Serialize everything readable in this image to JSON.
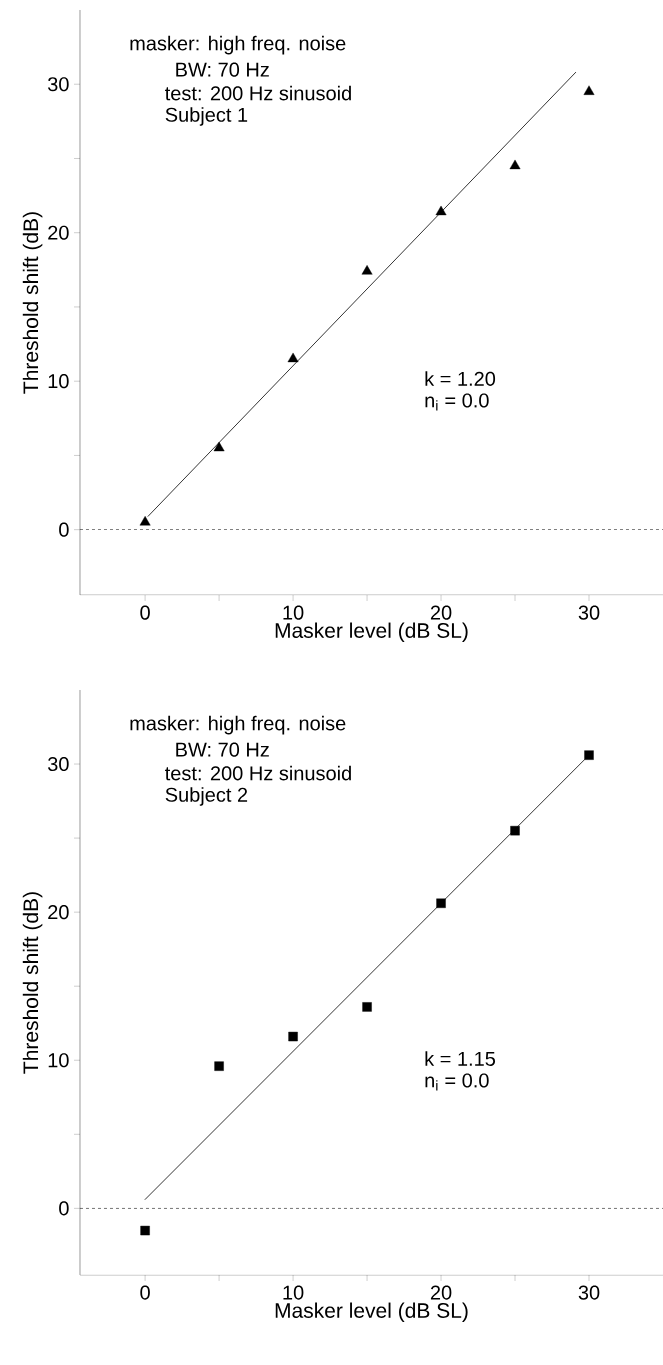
{
  "chart_data": [
    {
      "type": "scatter",
      "xlabel": "Masker level (dB SL)",
      "ylabel": "Threshold shift (dB)",
      "annotations": [
        "masker: high freq. noise",
        "BW: 70 Hz",
        "test: 200 Hz sinusoid",
        "Subject 1",
        "k = 1.20",
        "n$_{i}$ = 0.0"
      ],
      "xlim": [
        -4.4,
        35
      ],
      "ylim": [
        -4.4,
        35
      ],
      "xticks": [
        0,
        {
          "value": 5,
          "label": null
        },
        10,
        {
          "value": 15,
          "label": null
        },
        20,
        {
          "value": 25,
          "label": null
        },
        30
      ],
      "yticks": [
        0,
        {
          "value": 5,
          "label": null
        },
        10,
        {
          "value": 15,
          "label": null
        },
        20,
        {
          "value": 25,
          "label": null
        },
        30
      ],
      "series": [
        {
          "marker": "triangle",
          "color": "#000000",
          "x": [
            0,
            5,
            10,
            15,
            20,
            25,
            30
          ],
          "values": [
            0.5,
            5.5,
            11.5,
            17.4,
            21.4,
            24.5,
            29.5
          ]
        },
        {
          "type": "line",
          "marker": "none",
          "line_style": "solid",
          "color": "#000000",
          "x": [
            0.2,
            29.1
          ],
          "values": [
            0.9,
            30.8
          ]
        }
      ],
      "ref_lines": [
        {
          "axis": "y",
          "value": 0,
          "line_style": "dashed",
          "color": "#000000"
        }
      ]
    },
    {
      "type": "scatter",
      "xlabel": "Masker level (dB SL)",
      "ylabel": "Threshold shift (dB)",
      "annotations": [
        "masker: high freq. noise",
        "BW: 70 Hz",
        "test: 200 Hz sinusoid",
        "Subject 2",
        "k = 1.15",
        "n$_{i}$ = 0.0"
      ],
      "xlim": [
        -4.4,
        35
      ],
      "ylim": [
        -4.5,
        35
      ],
      "xticks": [
        0,
        {
          "value": 5,
          "label": null
        },
        10,
        {
          "value": 15,
          "label": null
        },
        20,
        {
          "value": 25,
          "label": null
        },
        30
      ],
      "yticks": [
        0,
        {
          "value": 5,
          "label": null
        },
        10,
        {
          "value": 15,
          "label": null
        },
        20,
        {
          "value": 25,
          "label": null
        },
        30
      ],
      "series": [
        {
          "marker": "square",
          "color": "#000000",
          "x": [
            0,
            5,
            10,
            15,
            20,
            25,
            30
          ],
          "values": [
            -1.5,
            9.6,
            11.6,
            13.6,
            20.6,
            25.5,
            30.6
          ]
        },
        {
          "type": "line",
          "marker": "none",
          "line_style": "solid",
          "color": "#000000",
          "x": [
            0,
            29.7
          ],
          "values": [
            0.6,
            30.3
          ]
        }
      ],
      "ref_lines": [
        {
          "axis": "y",
          "value": 0,
          "line_style": "dashed",
          "color": "#000000"
        }
      ]
    }
  ]
}
